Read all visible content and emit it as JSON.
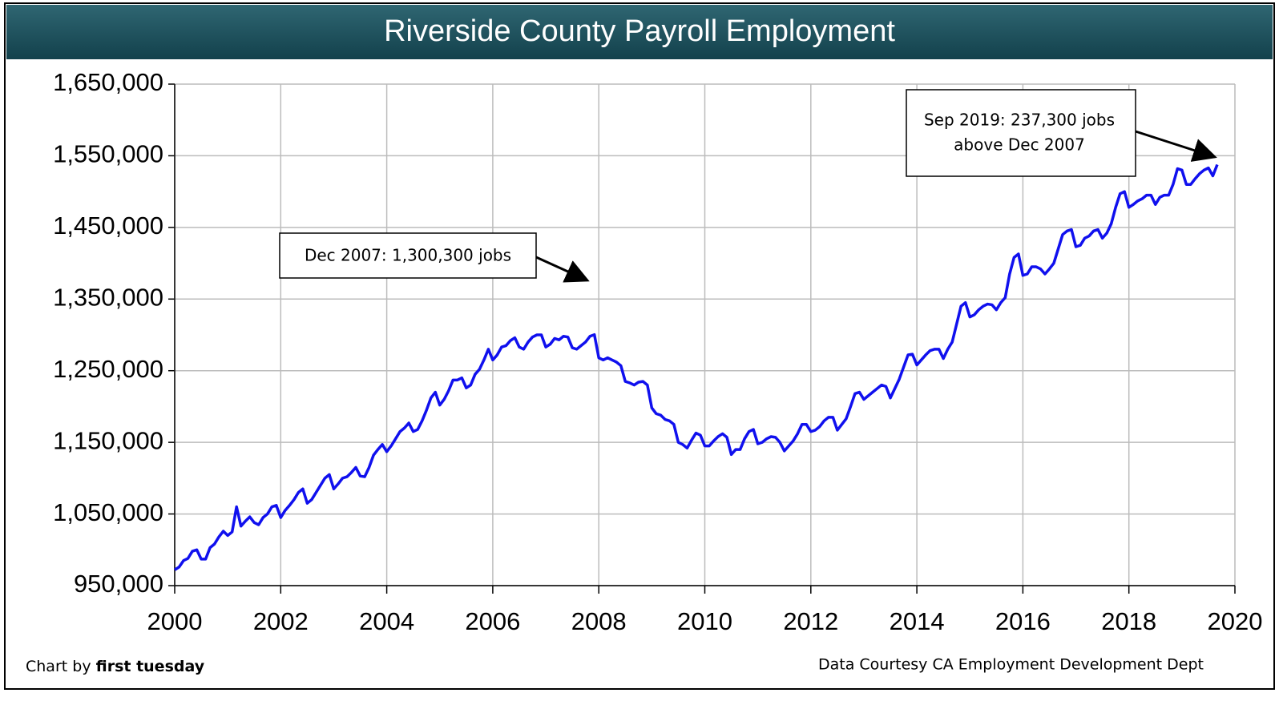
{
  "chart_data": {
    "type": "line",
    "title": "Riverside County Payroll Employment",
    "color": "#1010ee",
    "grid": true,
    "xlim": [
      2000,
      2020
    ],
    "xticks": [
      2000,
      2002,
      2004,
      2006,
      2008,
      2010,
      2012,
      2014,
      2016,
      2018,
      2020
    ],
    "ylim": [
      950000,
      1650000
    ],
    "yticks": [
      {
        "value": 950000,
        "label": "950,000"
      },
      {
        "value": 1050000,
        "label": "1,050,000"
      },
      {
        "value": 1150000,
        "label": "1,150,000"
      },
      {
        "value": 1250000,
        "label": "1,250,000"
      },
      {
        "value": 1350000,
        "label": "1,350,000"
      },
      {
        "value": 1450000,
        "label": "1,450,000"
      },
      {
        "value": 1550000,
        "label": "1,550,000"
      },
      {
        "value": 1650000,
        "label": "1,650,000"
      }
    ],
    "x": [
      2000,
      2000.0833,
      2000.1667,
      2000.25,
      2000.3333,
      2000.4167,
      2000.5,
      2000.5833,
      2000.6667,
      2000.75,
      2000.8333,
      2000.9167,
      2001,
      2001.0833,
      2001.1667,
      2001.25,
      2001.3333,
      2001.4167,
      2001.5,
      2001.5833,
      2001.6667,
      2001.75,
      2001.8333,
      2001.9167,
      2002,
      2002.0833,
      2002.1667,
      2002.25,
      2002.3333,
      2002.4167,
      2002.5,
      2002.5833,
      2002.6667,
      2002.75,
      2002.8333,
      2002.9167,
      2003,
      2003.0833,
      2003.1667,
      2003.25,
      2003.3333,
      2003.4167,
      2003.5,
      2003.5833,
      2003.6667,
      2003.75,
      2003.8333,
      2003.9167,
      2004,
      2004.0833,
      2004.1667,
      2004.25,
      2004.3333,
      2004.4167,
      2004.5,
      2004.5833,
      2004.6667,
      2004.75,
      2004.8333,
      2004.9167,
      2005,
      2005.0833,
      2005.1667,
      2005.25,
      2005.3333,
      2005.4167,
      2005.5,
      2005.5833,
      2005.6667,
      2005.75,
      2005.8333,
      2005.9167,
      2006,
      2006.0833,
      2006.1667,
      2006.25,
      2006.3333,
      2006.4167,
      2006.5,
      2006.5833,
      2006.6667,
      2006.75,
      2006.8333,
      2006.9167,
      2007,
      2007.0833,
      2007.1667,
      2007.25,
      2007.3333,
      2007.4167,
      2007.5,
      2007.5833,
      2007.6667,
      2007.75,
      2007.8333,
      2007.9167,
      2008,
      2008.0833,
      2008.1667,
      2008.25,
      2008.3333,
      2008.4167,
      2008.5,
      2008.5833,
      2008.6667,
      2008.75,
      2008.8333,
      2008.9167,
      2009,
      2009.0833,
      2009.1667,
      2009.25,
      2009.3333,
      2009.4167,
      2009.5,
      2009.5833,
      2009.6667,
      2009.75,
      2009.8333,
      2009.9167,
      2010,
      2010.0833,
      2010.1667,
      2010.25,
      2010.3333,
      2010.4167,
      2010.5,
      2010.5833,
      2010.6667,
      2010.75,
      2010.8333,
      2010.9167,
      2011,
      2011.0833,
      2011.1667,
      2011.25,
      2011.3333,
      2011.4167,
      2011.5,
      2011.5833,
      2011.6667,
      2011.75,
      2011.8333,
      2011.9167,
      2012,
      2012.0833,
      2012.1667,
      2012.25,
      2012.3333,
      2012.4167,
      2012.5,
      2012.5833,
      2012.6667,
      2012.75,
      2012.8333,
      2012.9167,
      2013,
      2013.0833,
      2013.1667,
      2013.25,
      2013.3333,
      2013.4167,
      2013.5,
      2013.5833,
      2013.6667,
      2013.75,
      2013.8333,
      2013.9167,
      2014,
      2014.0833,
      2014.1667,
      2014.25,
      2014.3333,
      2014.4167,
      2014.5,
      2014.5833,
      2014.6667,
      2014.75,
      2014.8333,
      2014.9167,
      2015,
      2015.0833,
      2015.1667,
      2015.25,
      2015.3333,
      2015.4167,
      2015.5,
      2015.5833,
      2015.6667,
      2015.75,
      2015.8333,
      2015.9167,
      2016,
      2016.0833,
      2016.1667,
      2016.25,
      2016.3333,
      2016.4167,
      2016.5,
      2016.5833,
      2016.6667,
      2016.75,
      2016.8333,
      2016.9167,
      2017,
      2017.0833,
      2017.1667,
      2017.25,
      2017.3333,
      2017.4167,
      2017.5,
      2017.5833,
      2017.6667,
      2017.75,
      2017.8333,
      2017.9167,
      2018,
      2018.0833,
      2018.1667,
      2018.25,
      2018.3333,
      2018.4167,
      2018.5,
      2018.5833,
      2018.6667,
      2018.75,
      2018.8333,
      2018.9167,
      2019,
      2019.0833,
      2019.1667,
      2019.25,
      2019.3333,
      2019.4167,
      2019.5,
      2019.5833,
      2019.6667
    ],
    "values": [
      972000,
      976000,
      985000,
      988000,
      998000,
      1000000,
      987000,
      987000,
      1003000,
      1008000,
      1018000,
      1026000,
      1020000,
      1025000,
      1060000,
      1033000,
      1040000,
      1046000,
      1038000,
      1035000,
      1045000,
      1050000,
      1060000,
      1062000,
      1045000,
      1055000,
      1062000,
      1070000,
      1080000,
      1085000,
      1065000,
      1070000,
      1080000,
      1090000,
      1100000,
      1105000,
      1085000,
      1092000,
      1100000,
      1102000,
      1108000,
      1115000,
      1103000,
      1102000,
      1115000,
      1132000,
      1140000,
      1147000,
      1137000,
      1145000,
      1155000,
      1165000,
      1170000,
      1177000,
      1165000,
      1168000,
      1180000,
      1195000,
      1212000,
      1220000,
      1202000,
      1210000,
      1222000,
      1237000,
      1237000,
      1240000,
      1226000,
      1230000,
      1245000,
      1252000,
      1265000,
      1280000,
      1265000,
      1272000,
      1283000,
      1285000,
      1292000,
      1296000,
      1283000,
      1280000,
      1290000,
      1297000,
      1300000,
      1300000,
      1283000,
      1287000,
      1295000,
      1293000,
      1298000,
      1297000,
      1282000,
      1280000,
      1285000,
      1290000,
      1298000,
      1300300,
      1268000,
      1265000,
      1268000,
      1265000,
      1262000,
      1257000,
      1235000,
      1233000,
      1230000,
      1234000,
      1235000,
      1230000,
      1198000,
      1190000,
      1188000,
      1182000,
      1180000,
      1175000,
      1150000,
      1147000,
      1142000,
      1153000,
      1163000,
      1160000,
      1145000,
      1145000,
      1152000,
      1158000,
      1162000,
      1157000,
      1133000,
      1140000,
      1140000,
      1155000,
      1165000,
      1168000,
      1148000,
      1150000,
      1155000,
      1158000,
      1157000,
      1150000,
      1138000,
      1145000,
      1152000,
      1162000,
      1175000,
      1175000,
      1165000,
      1167000,
      1172000,
      1180000,
      1185000,
      1185000,
      1167000,
      1175000,
      1183000,
      1200000,
      1218000,
      1220000,
      1210000,
      1215000,
      1220000,
      1225000,
      1230000,
      1228000,
      1212000,
      1225000,
      1238000,
      1255000,
      1272000,
      1273000,
      1258000,
      1265000,
      1272000,
      1278000,
      1280000,
      1280000,
      1267000,
      1280000,
      1290000,
      1315000,
      1340000,
      1345000,
      1325000,
      1328000,
      1335000,
      1340000,
      1343000,
      1342000,
      1335000,
      1345000,
      1352000,
      1385000,
      1408000,
      1413000,
      1383000,
      1385000,
      1395000,
      1395000,
      1392000,
      1385000,
      1392000,
      1400000,
      1420000,
      1440000,
      1445000,
      1447000,
      1423000,
      1425000,
      1435000,
      1438000,
      1445000,
      1447000,
      1435000,
      1442000,
      1455000,
      1478000,
      1497000,
      1500000,
      1478000,
      1482000,
      1487000,
      1490000,
      1495000,
      1495000,
      1482000,
      1492000,
      1495000,
      1495000,
      1510000,
      1532000,
      1530000,
      1510000,
      1510000,
      1518000,
      1525000,
      1530000,
      1533000,
      1522000,
      1537600
    ],
    "annotations": [
      {
        "lines": [
          "Dec 2007: 1,300,300 jobs"
        ]
      },
      {
        "lines": [
          "Sep 2019: 237,300 jobs",
          "above Dec 2007"
        ]
      }
    ],
    "credit": "Chart by",
    "credit_name": "first tuesday",
    "source": "Data Courtesy CA Employment Development Dept"
  }
}
